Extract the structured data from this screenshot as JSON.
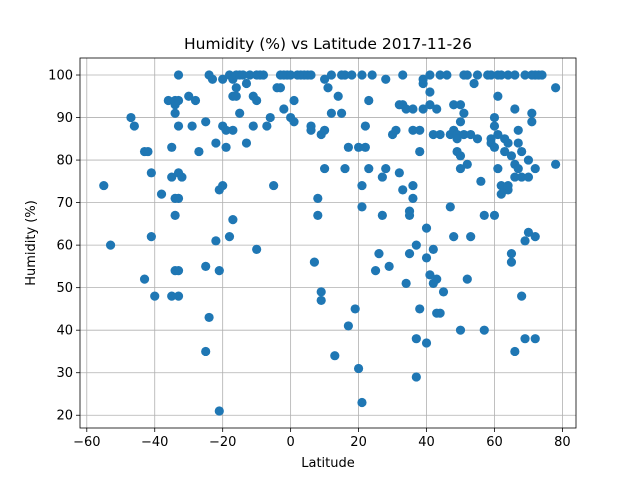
{
  "chart_data": {
    "type": "scatter",
    "title": "Humidity (%) vs Latitude 2017-11-26",
    "xlabel": "Latitude",
    "ylabel": "Humidity (%)",
    "xlim": [
      -62,
      84
    ],
    "ylim": [
      17,
      104
    ],
    "xticks": [
      -60,
      -40,
      -20,
      0,
      20,
      40,
      60,
      80
    ],
    "yticks": [
      20,
      30,
      40,
      50,
      60,
      70,
      80,
      90,
      100
    ],
    "grid": true,
    "color": "#1f77b4",
    "points": [
      [
        -55,
        74
      ],
      [
        -53,
        60
      ],
      [
        -47,
        90
      ],
      [
        -46,
        88
      ],
      [
        -43,
        82
      ],
      [
        -43,
        52
      ],
      [
        -42,
        82
      ],
      [
        -41,
        62
      ],
      [
        -41,
        77
      ],
      [
        -40,
        48
      ],
      [
        -38,
        72
      ],
      [
        -36,
        94
      ],
      [
        -35,
        48
      ],
      [
        -35,
        83
      ],
      [
        -35,
        76
      ],
      [
        -34,
        93
      ],
      [
        -34,
        91
      ],
      [
        -34,
        94
      ],
      [
        -34,
        71
      ],
      [
        -34,
        67
      ],
      [
        -34,
        54
      ],
      [
        -33,
        100
      ],
      [
        -33,
        94
      ],
      [
        -33,
        88
      ],
      [
        -33,
        77
      ],
      [
        -33,
        71
      ],
      [
        -33,
        54
      ],
      [
        -33,
        48
      ],
      [
        -32,
        76
      ],
      [
        -30,
        95
      ],
      [
        -29,
        88
      ],
      [
        -28,
        94
      ],
      [
        -27,
        82
      ],
      [
        -25,
        89
      ],
      [
        -25,
        55
      ],
      [
        -25,
        35
      ],
      [
        -24,
        100
      ],
      [
        -24,
        43
      ],
      [
        -23,
        99
      ],
      [
        -22,
        84
      ],
      [
        -22,
        61
      ],
      [
        -21,
        73
      ],
      [
        -21,
        54
      ],
      [
        -21,
        21
      ],
      [
        -20,
        88
      ],
      [
        -20,
        74
      ],
      [
        -20,
        99
      ],
      [
        -19,
        87
      ],
      [
        -19,
        83
      ],
      [
        -18,
        62
      ],
      [
        -18,
        100
      ],
      [
        -17,
        99
      ],
      [
        -17,
        87
      ],
      [
        -17,
        66
      ],
      [
        -17,
        95
      ],
      [
        -16,
        97
      ],
      [
        -16,
        95
      ],
      [
        -16,
        100
      ],
      [
        -15,
        100
      ],
      [
        -15,
        91
      ],
      [
        -14,
        100
      ],
      [
        -13,
        98
      ],
      [
        -13,
        84
      ],
      [
        -12,
        100
      ],
      [
        -11,
        88
      ],
      [
        -11,
        95
      ],
      [
        -10,
        100
      ],
      [
        -10,
        94
      ],
      [
        -10,
        59
      ],
      [
        -9,
        100
      ],
      [
        -8,
        100
      ],
      [
        -7,
        88
      ],
      [
        -6,
        90
      ],
      [
        -5,
        74
      ],
      [
        -4,
        97
      ],
      [
        -3,
        100
      ],
      [
        -3,
        97
      ],
      [
        -2,
        92
      ],
      [
        -2,
        100
      ],
      [
        -1,
        100
      ],
      [
        0,
        100
      ],
      [
        0,
        90
      ],
      [
        1,
        94
      ],
      [
        1,
        89
      ],
      [
        2,
        100
      ],
      [
        3,
        100
      ],
      [
        4,
        100
      ],
      [
        5,
        100
      ],
      [
        6,
        100
      ],
      [
        6,
        88
      ],
      [
        6,
        87
      ],
      [
        7,
        56
      ],
      [
        8,
        71
      ],
      [
        8,
        67
      ],
      [
        9,
        49
      ],
      [
        9,
        47
      ],
      [
        9,
        86
      ],
      [
        10,
        87
      ],
      [
        10,
        78
      ],
      [
        10,
        99
      ],
      [
        11,
        97
      ],
      [
        12,
        100
      ],
      [
        12,
        91
      ],
      [
        13,
        34
      ],
      [
        14,
        95
      ],
      [
        15,
        91
      ],
      [
        15,
        100
      ],
      [
        16,
        78
      ],
      [
        16,
        100
      ],
      [
        17,
        83
      ],
      [
        17,
        41
      ],
      [
        18,
        100
      ],
      [
        19,
        45
      ],
      [
        20,
        83
      ],
      [
        20,
        31
      ],
      [
        21,
        23
      ],
      [
        21,
        74
      ],
      [
        21,
        69
      ],
      [
        21,
        100
      ],
      [
        22,
        88
      ],
      [
        22,
        83
      ],
      [
        23,
        94
      ],
      [
        23,
        78
      ],
      [
        24,
        100
      ],
      [
        25,
        54
      ],
      [
        26,
        58
      ],
      [
        27,
        67
      ],
      [
        27,
        76
      ],
      [
        28,
        99
      ],
      [
        28,
        78
      ],
      [
        29,
        55
      ],
      [
        30,
        86
      ],
      [
        31,
        87
      ],
      [
        32,
        93
      ],
      [
        32,
        77
      ],
      [
        33,
        100
      ],
      [
        33,
        73
      ],
      [
        33,
        93
      ],
      [
        34,
        51
      ],
      [
        34,
        92
      ],
      [
        35,
        68
      ],
      [
        35,
        67
      ],
      [
        35,
        58
      ],
      [
        36,
        71
      ],
      [
        36,
        87
      ],
      [
        36,
        92
      ],
      [
        36,
        74
      ],
      [
        37,
        60
      ],
      [
        37,
        38
      ],
      [
        37,
        29
      ],
      [
        38,
        82
      ],
      [
        38,
        87
      ],
      [
        38,
        45
      ],
      [
        39,
        92
      ],
      [
        39,
        98
      ],
      [
        39,
        99
      ],
      [
        40,
        57
      ],
      [
        40,
        37
      ],
      [
        40,
        64
      ],
      [
        41,
        93
      ],
      [
        41,
        53
      ],
      [
        41,
        96
      ],
      [
        41,
        100
      ],
      [
        42,
        86
      ],
      [
        42,
        51
      ],
      [
        42,
        59
      ],
      [
        43,
        92
      ],
      [
        43,
        52
      ],
      [
        43,
        44
      ],
      [
        44,
        100
      ],
      [
        44,
        86
      ],
      [
        44,
        44
      ],
      [
        45,
        49
      ],
      [
        46,
        100
      ],
      [
        47,
        86
      ],
      [
        47,
        69
      ],
      [
        48,
        93
      ],
      [
        48,
        62
      ],
      [
        48,
        87
      ],
      [
        49,
        82
      ],
      [
        49,
        86
      ],
      [
        49,
        85
      ],
      [
        50,
        93
      ],
      [
        50,
        89
      ],
      [
        50,
        78
      ],
      [
        50,
        40
      ],
      [
        50,
        81
      ],
      [
        51,
        100
      ],
      [
        51,
        91
      ],
      [
        51,
        86
      ],
      [
        52,
        79
      ],
      [
        52,
        100
      ],
      [
        52,
        52
      ],
      [
        53,
        86
      ],
      [
        53,
        62
      ],
      [
        54,
        98
      ],
      [
        55,
        85
      ],
      [
        55,
        100
      ],
      [
        56,
        75
      ],
      [
        57,
        67
      ],
      [
        57,
        40
      ],
      [
        58,
        100
      ],
      [
        59,
        85
      ],
      [
        59,
        84
      ],
      [
        59,
        100
      ],
      [
        60,
        83
      ],
      [
        60,
        90
      ],
      [
        60,
        88
      ],
      [
        60,
        67
      ],
      [
        61,
        100
      ],
      [
        61,
        95
      ],
      [
        61,
        86
      ],
      [
        61,
        78
      ],
      [
        62,
        72
      ],
      [
        62,
        74
      ],
      [
        62,
        100
      ],
      [
        63,
        85
      ],
      [
        63,
        73
      ],
      [
        63,
        82
      ],
      [
        64,
        100
      ],
      [
        64,
        84
      ],
      [
        64,
        73
      ],
      [
        64,
        74
      ],
      [
        65,
        58
      ],
      [
        65,
        56
      ],
      [
        65,
        81
      ],
      [
        66,
        92
      ],
      [
        66,
        100
      ],
      [
        66,
        79
      ],
      [
        66,
        76
      ],
      [
        66,
        35
      ],
      [
        67,
        87
      ],
      [
        67,
        84
      ],
      [
        67,
        78
      ],
      [
        68,
        48
      ],
      [
        68,
        82
      ],
      [
        68,
        76
      ],
      [
        69,
        100
      ],
      [
        69,
        61
      ],
      [
        69,
        38
      ],
      [
        70,
        80
      ],
      [
        70,
        76
      ],
      [
        70,
        63
      ],
      [
        71,
        100
      ],
      [
        71,
        89
      ],
      [
        71,
        91
      ],
      [
        72,
        100
      ],
      [
        72,
        78
      ],
      [
        72,
        62
      ],
      [
        72,
        38
      ],
      [
        73,
        100
      ],
      [
        74,
        100
      ],
      [
        78,
        97
      ],
      [
        78,
        79
      ]
    ]
  }
}
